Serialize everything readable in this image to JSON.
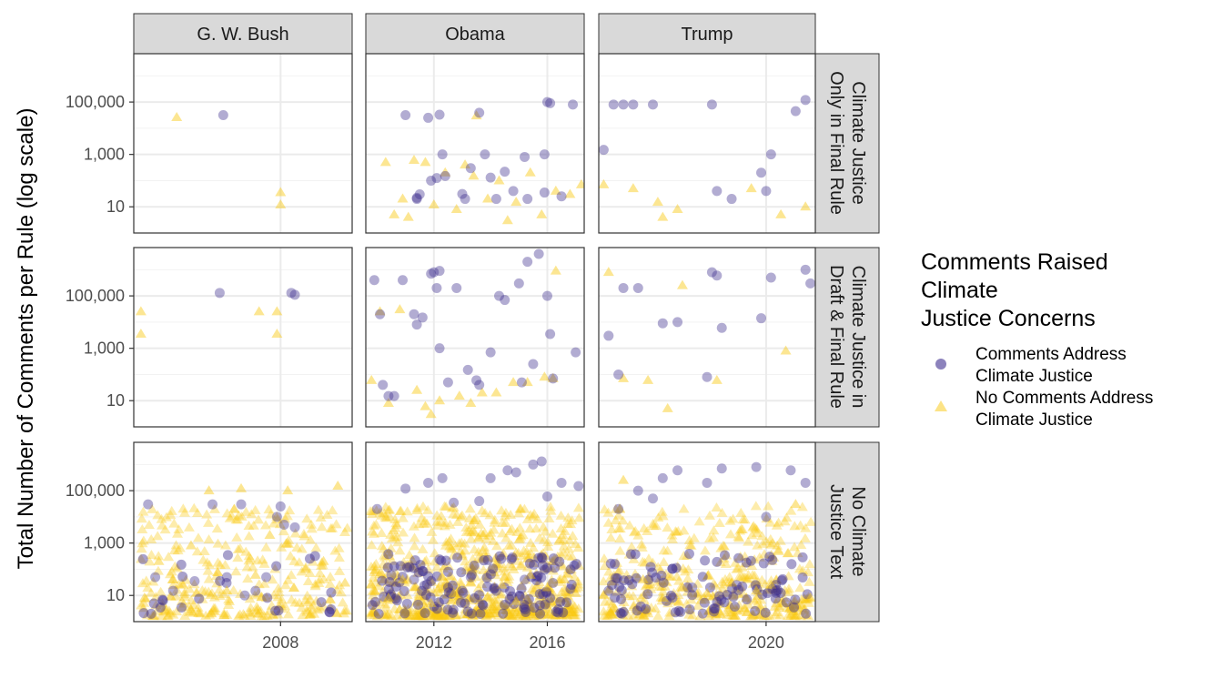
{
  "chart_data": {
    "type": "scatter",
    "ylabel": "Total Number of Comments per Rule (log scale)",
    "y_scale": "log",
    "y_ticks": [
      10,
      1000,
      100000
    ],
    "y_tick_labels": [
      "10",
      "1,000",
      "100,000"
    ],
    "ylim": [
      1,
      7000000
    ],
    "columns": [
      {
        "label": "G. W. Bush",
        "xlim": [
          2003.9,
          2010.0
        ],
        "x_ticks": [
          2008
        ],
        "x_tick_labels": [
          "2008"
        ]
      },
      {
        "label": "Obama",
        "xlim": [
          2009.6,
          2017.3
        ],
        "x_ticks": [
          2012,
          2016
        ],
        "x_tick_labels": [
          "2012",
          "2016"
        ]
      },
      {
        "label": "Trump",
        "xlim": [
          2016.6,
          2021.0
        ],
        "x_ticks": [
          2020
        ],
        "x_tick_labels": [
          "2020"
        ]
      }
    ],
    "rows": [
      {
        "label_lines": [
          "Climate Justice",
          "Only in Final Rule"
        ]
      },
      {
        "label_lines": [
          "Climate Justice in",
          "Draft & Final Rule"
        ]
      },
      {
        "label_lines": [
          "No Climate",
          "Justice Text"
        ]
      }
    ],
    "legend": {
      "title_lines": [
        "Comments Raised",
        "Climate",
        "Justice Concerns"
      ],
      "position": "right",
      "entries": [
        {
          "label_lines": [
            "Comments Address",
            "Climate Justice"
          ],
          "shape": "circle",
          "color": "#3f2f8f"
        },
        {
          "label_lines": [
            "No Comments Address",
            "Climate Justice"
          ],
          "shape": "triangle",
          "color": "#f9c80e"
        }
      ]
    },
    "colors": {
      "addressed": "#3f2f8f",
      "not_addressed": "#f9c80e",
      "strip": "#d9d9d9",
      "grid": "#ebebeb"
    },
    "panels": [
      {
        "row": 0,
        "col": 0,
        "addressed": [
          [
            2006.4,
            31600
          ]
        ],
        "not_addressed": [
          [
            2005.1,
            26000
          ],
          [
            2008.0,
            35
          ],
          [
            2008.0,
            12
          ]
        ]
      },
      {
        "row": 0,
        "col": 1,
        "addressed": [
          [
            2011.0,
            31600
          ],
          [
            2011.4,
            20
          ],
          [
            2011.4,
            22
          ],
          [
            2011.5,
            30
          ],
          [
            2011.8,
            25000
          ],
          [
            2011.9,
            100
          ],
          [
            2012.1,
            125
          ],
          [
            2012.2,
            33000
          ],
          [
            2012.3,
            1000
          ],
          [
            2012.4,
            150
          ],
          [
            2013.0,
            31
          ],
          [
            2013.1,
            20
          ],
          [
            2013.3,
            300
          ],
          [
            2013.6,
            39000
          ],
          [
            2013.8,
            1000
          ],
          [
            2014.0,
            130
          ],
          [
            2014.2,
            20
          ],
          [
            2014.5,
            220
          ],
          [
            2014.8,
            40
          ],
          [
            2015.2,
            800
          ],
          [
            2015.3,
            20
          ],
          [
            2015.9,
            1000
          ],
          [
            2015.9,
            35
          ],
          [
            2016.0,
            100000
          ],
          [
            2016.1,
            90000
          ],
          [
            2016.5,
            25
          ],
          [
            2016.9,
            80000
          ]
        ],
        "not_addressed": [
          [
            2010.3,
            500
          ],
          [
            2010.6,
            5
          ],
          [
            2010.9,
            20
          ],
          [
            2011.1,
            4
          ],
          [
            2011.3,
            600
          ],
          [
            2011.7,
            500
          ],
          [
            2012.0,
            12
          ],
          [
            2012.4,
            200
          ],
          [
            2012.8,
            8
          ],
          [
            2013.1,
            400
          ],
          [
            2013.4,
            150
          ],
          [
            2013.5,
            30000
          ],
          [
            2013.9,
            20
          ],
          [
            2014.3,
            100
          ],
          [
            2014.6,
            3
          ],
          [
            2014.9,
            15
          ],
          [
            2015.4,
            200
          ],
          [
            2015.8,
            5
          ],
          [
            2016.3,
            40
          ],
          [
            2016.8,
            30
          ],
          [
            2017.2,
            70
          ]
        ]
      },
      {
        "row": 0,
        "col": 2,
        "addressed": [
          [
            2016.7,
            1500
          ],
          [
            2016.9,
            80000
          ],
          [
            2017.1,
            80000
          ],
          [
            2017.3,
            80000
          ],
          [
            2017.7,
            80000
          ],
          [
            2018.9,
            80000
          ],
          [
            2019.0,
            40
          ],
          [
            2019.3,
            20
          ],
          [
            2019.9,
            200
          ],
          [
            2020.0,
            40
          ],
          [
            2020.1,
            1000
          ],
          [
            2020.6,
            45000
          ],
          [
            2020.8,
            120000
          ]
        ],
        "not_addressed": [
          [
            2016.7,
            70
          ],
          [
            2017.3,
            50
          ],
          [
            2017.8,
            15
          ],
          [
            2017.9,
            4
          ],
          [
            2018.2,
            8
          ],
          [
            2019.7,
            50
          ],
          [
            2020.3,
            5
          ],
          [
            2020.8,
            10
          ]
        ]
      },
      {
        "row": 1,
        "col": 0,
        "addressed": [
          [
            2006.3,
            130000
          ],
          [
            2008.3,
            130000
          ],
          [
            2008.4,
            110000
          ]
        ],
        "not_addressed": [
          [
            2004.1,
            25000
          ],
          [
            2004.1,
            3500
          ],
          [
            2007.4,
            25000
          ],
          [
            2007.9,
            25000
          ],
          [
            2007.9,
            3500
          ]
        ]
      },
      {
        "row": 1,
        "col": 1,
        "addressed": [
          [
            2009.9,
            400000
          ],
          [
            2010.1,
            20000
          ],
          [
            2010.2,
            40
          ],
          [
            2010.4,
            15
          ],
          [
            2010.6,
            15
          ],
          [
            2010.9,
            400000
          ],
          [
            2011.3,
            20000
          ],
          [
            2011.4,
            8000
          ],
          [
            2011.6,
            15000
          ],
          [
            2011.9,
            700000
          ],
          [
            2012.0,
            800000
          ],
          [
            2012.1,
            200000
          ],
          [
            2012.2,
            900000
          ],
          [
            2012.2,
            1000
          ],
          [
            2012.5,
            50
          ],
          [
            2012.8,
            200000
          ],
          [
            2013.2,
            150
          ],
          [
            2013.5,
            60
          ],
          [
            2013.6,
            40
          ],
          [
            2014.0,
            700
          ],
          [
            2014.3,
            100000
          ],
          [
            2014.5,
            70000
          ],
          [
            2015.0,
            300000
          ],
          [
            2015.1,
            50
          ],
          [
            2015.3,
            2000000
          ],
          [
            2015.5,
            250
          ],
          [
            2015.7,
            4000000
          ],
          [
            2016.0,
            100000
          ],
          [
            2016.1,
            3500
          ],
          [
            2016.2,
            70
          ],
          [
            2017.0,
            700
          ]
        ],
        "not_addressed": [
          [
            2009.8,
            60
          ],
          [
            2010.1,
            25000
          ],
          [
            2010.4,
            8
          ],
          [
            2010.8,
            30000
          ],
          [
            2011.4,
            25
          ],
          [
            2011.7,
            6
          ],
          [
            2011.9,
            3
          ],
          [
            2012.2,
            10
          ],
          [
            2012.9,
            15
          ],
          [
            2013.3,
            8
          ],
          [
            2013.7,
            20
          ],
          [
            2014.2,
            20
          ],
          [
            2014.8,
            50
          ],
          [
            2015.3,
            50
          ],
          [
            2015.9,
            80
          ],
          [
            2016.2,
            70
          ],
          [
            2016.3,
            900000
          ]
        ]
      },
      {
        "row": 1,
        "col": 2,
        "addressed": [
          [
            2016.8,
            3000
          ],
          [
            2017.0,
            100
          ],
          [
            2017.1,
            200000
          ],
          [
            2017.4,
            200000
          ],
          [
            2017.9,
            9000
          ],
          [
            2018.2,
            10000
          ],
          [
            2018.8,
            80
          ],
          [
            2018.9,
            800000
          ],
          [
            2019.0,
            600000
          ],
          [
            2019.1,
            6000
          ],
          [
            2019.9,
            14000
          ],
          [
            2020.1,
            500000
          ],
          [
            2020.8,
            1000000
          ],
          [
            2020.9,
            300000
          ]
        ],
        "not_addressed": [
          [
            2016.8,
            800000
          ],
          [
            2017.1,
            70
          ],
          [
            2017.6,
            60
          ],
          [
            2018.0,
            5
          ],
          [
            2018.3,
            250000
          ],
          [
            2019.0,
            60
          ],
          [
            2020.4,
            800
          ]
        ]
      },
      {
        "row": 2,
        "col": 0,
        "addressed": [
          [
            2004.3,
            30000
          ],
          [
            2004.5,
            50
          ],
          [
            2005.0,
            15
          ],
          [
            2005.6,
            35
          ],
          [
            2006.1,
            30000
          ],
          [
            2006.5,
            50
          ],
          [
            2006.9,
            30000
          ],
          [
            2007.0,
            10
          ],
          [
            2007.3,
            15
          ],
          [
            2007.6,
            50
          ],
          [
            2007.9,
            10000
          ],
          [
            2008.0,
            25000
          ],
          [
            2008.1,
            5000
          ],
          [
            2008.4,
            4000
          ]
        ],
        "not_addressed": [
          [
            2004.2,
            8
          ],
          [
            2004.6,
            200
          ],
          [
            2005.0,
            40
          ],
          [
            2005.5,
            800
          ],
          [
            2006.0,
            100000
          ],
          [
            2006.5,
            15
          ],
          [
            2006.9,
            120000
          ],
          [
            2007.3,
            60
          ],
          [
            2007.7,
            2000
          ],
          [
            2008.2,
            100000
          ],
          [
            2008.7,
            100
          ],
          [
            2009.2,
            200
          ],
          [
            2009.6,
            150000
          ],
          [
            2009.8,
            30
          ]
        ]
      },
      {
        "row": 2,
        "col": 1,
        "addressed": [
          [
            2010.0,
            20000
          ],
          [
            2010.5,
            60
          ],
          [
            2011.0,
            120000
          ],
          [
            2011.3,
            40
          ],
          [
            2011.8,
            200000
          ],
          [
            2012.3,
            300000
          ],
          [
            2012.5,
            20
          ],
          [
            2012.7,
            35000
          ],
          [
            2013.0,
            15
          ],
          [
            2013.3,
            50
          ],
          [
            2013.6,
            40000
          ],
          [
            2014.0,
            300000
          ],
          [
            2014.2,
            15
          ],
          [
            2014.6,
            600000
          ],
          [
            2014.9,
            500000
          ],
          [
            2015.2,
            40
          ],
          [
            2015.5,
            1000000
          ],
          [
            2015.8,
            1300000
          ],
          [
            2016.0,
            60000
          ],
          [
            2016.2,
            30
          ],
          [
            2016.5,
            200000
          ],
          [
            2017.1,
            150000
          ]
        ],
        "not_addressed": [
          [
            2009.9,
            15
          ],
          [
            2010.4,
            8
          ],
          [
            2010.9,
            40
          ],
          [
            2011.3,
            20
          ],
          [
            2011.9,
            5
          ],
          [
            2012.3,
            50
          ],
          [
            2012.7,
            12
          ],
          [
            2013.3,
            30
          ],
          [
            2013.9,
            9
          ],
          [
            2014.4,
            25
          ],
          [
            2014.9,
            6
          ],
          [
            2015.4,
            60
          ],
          [
            2016.0,
            20
          ],
          [
            2016.6,
            40
          ],
          [
            2017.0,
            12
          ]
        ]
      },
      {
        "row": 2,
        "col": 2,
        "addressed": [
          [
            2016.8,
            15
          ],
          [
            2017.0,
            20000
          ],
          [
            2017.4,
            100000
          ],
          [
            2017.7,
            50000
          ],
          [
            2017.9,
            300000
          ],
          [
            2018.2,
            600000
          ],
          [
            2018.5,
            20
          ],
          [
            2018.8,
            200000
          ],
          [
            2019.1,
            700000
          ],
          [
            2019.4,
            25
          ],
          [
            2019.8,
            800000
          ],
          [
            2020.0,
            10000
          ],
          [
            2020.2,
            15
          ],
          [
            2020.5,
            600000
          ],
          [
            2020.8,
            200000
          ]
        ],
        "not_addressed": [
          [
            2016.7,
            10
          ],
          [
            2017.1,
            250000
          ],
          [
            2017.5,
            40
          ],
          [
            2017.9,
            8
          ],
          [
            2018.3,
            20
          ],
          [
            2018.8,
            12
          ],
          [
            2019.3,
            30
          ],
          [
            2019.8,
            15
          ],
          [
            2020.1,
            25
          ],
          [
            2020.6,
            30000
          ],
          [
            2020.9,
            8
          ]
        ]
      }
    ]
  }
}
